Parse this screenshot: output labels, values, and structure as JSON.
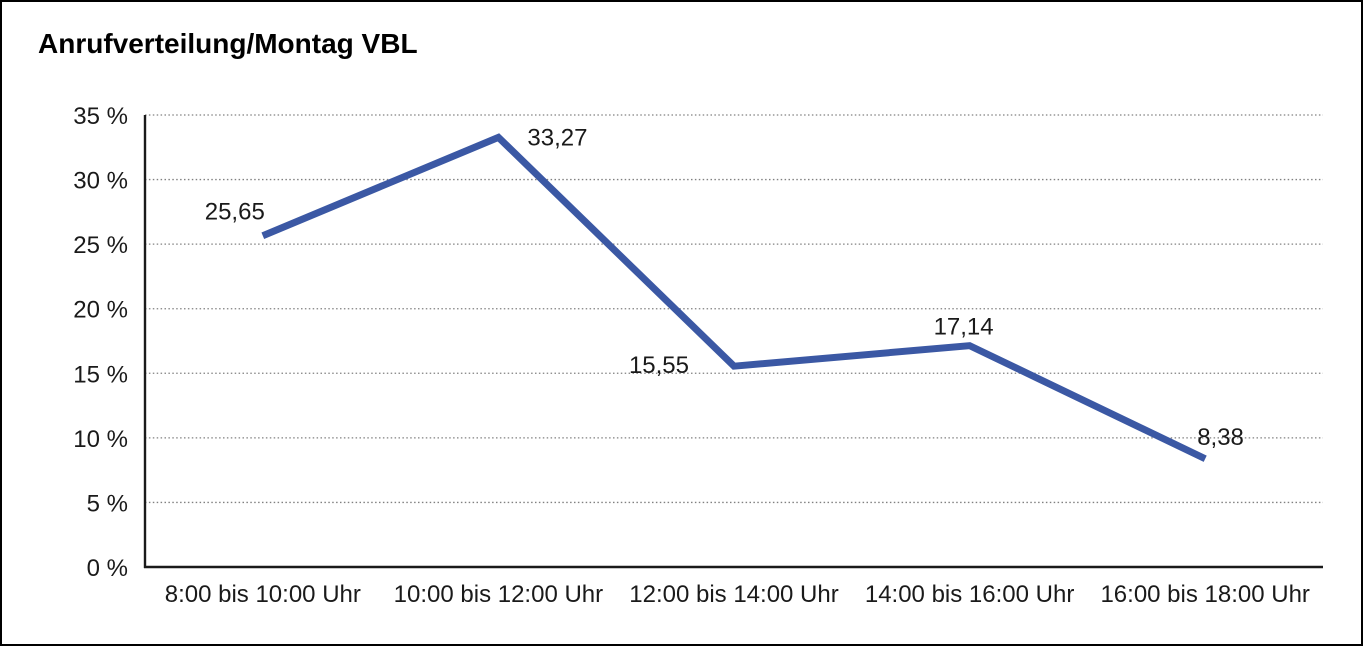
{
  "chart_data": {
    "type": "line",
    "title": "Anrufverteilung/Montag VBL",
    "categories": [
      "8:00 bis 10:00 Uhr",
      "10:00 bis 12:00 Uhr",
      "12:00 bis 14:00 Uhr",
      "14:00 bis 16:00 Uhr",
      "16:00 bis 18:00 Uhr"
    ],
    "values": [
      25.65,
      33.27,
      15.55,
      17.14,
      8.38
    ],
    "point_labels": [
      "25,65",
      "33,27",
      "15,55",
      "17,14",
      "8,38"
    ],
    "y_ticks": [
      {
        "value": 0,
        "label": "0 %"
      },
      {
        "value": 5,
        "label": "5 %"
      },
      {
        "value": 10,
        "label": "10 %"
      },
      {
        "value": 15,
        "label": "15 %"
      },
      {
        "value": 20,
        "label": "20 %"
      },
      {
        "value": 25,
        "label": "25 %"
      },
      {
        "value": 30,
        "label": "30 %"
      },
      {
        "value": 35,
        "label": "35 %"
      }
    ],
    "ylim": [
      0,
      35
    ],
    "xlabel": "",
    "ylabel": "",
    "grid": "horizontal-dotted",
    "legend": "none",
    "colors": {
      "line": "#3B58A4",
      "axis": "#1A1A1A",
      "grid": "#808080",
      "text": "#1A1A1A",
      "background": "#FFFFFF",
      "border": "#000000"
    }
  }
}
